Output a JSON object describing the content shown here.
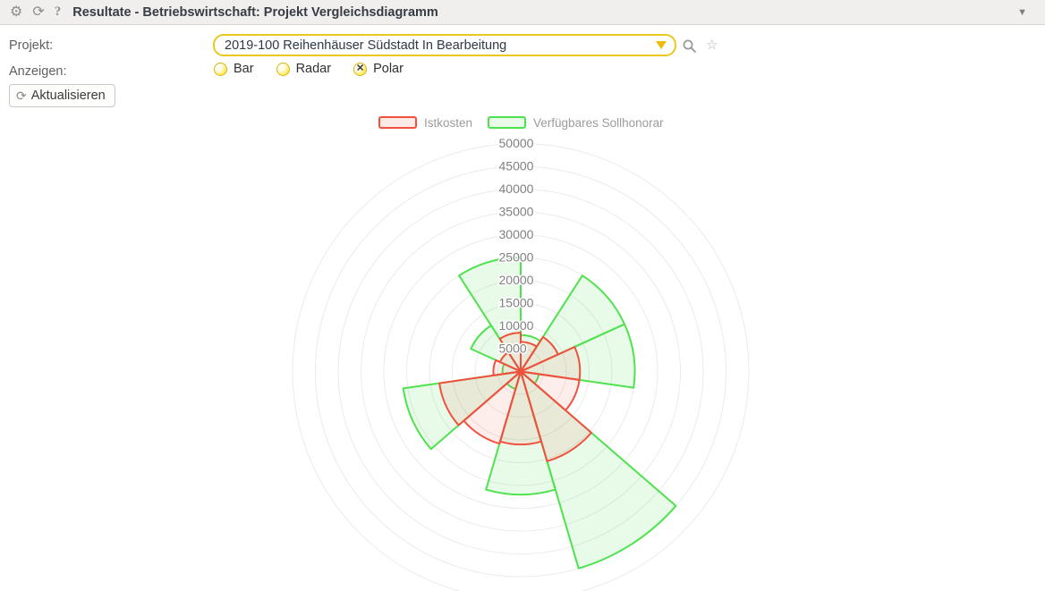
{
  "header": {
    "title": "Resultate - Betriebswirtschaft: Projekt Vergleichsdiagramm"
  },
  "icons": {
    "settings": "⚙",
    "refresh": "⟳",
    "help": "?",
    "collapse_caret": "▼",
    "star": "☆"
  },
  "filters": {
    "projekt_label": "Projekt:",
    "projekt_value": "2019-100 Reihenhäuser Südstadt In Bearbeitung",
    "anzeigen_label": "Anzeigen:",
    "display_options": [
      {
        "label": "Bar",
        "selected": false
      },
      {
        "label": "Radar",
        "selected": false
      },
      {
        "label": "Polar",
        "selected": true
      }
    ],
    "checked_glyph": "✕",
    "refresh_button_label": "Aktualisieren"
  },
  "chart_data": {
    "type": "polar",
    "legend": [
      {
        "name": "Istkosten",
        "color": "#f0503e",
        "fill": "rgba(240,80,62,0.10)",
        "swatch_fill": "#fbeae6"
      },
      {
        "name": "Verfügbares Sollhonorar",
        "color": "#4fe24f",
        "fill": "rgba(79,226,79,0.13)",
        "swatch_fill": "#eafbea"
      }
    ],
    "radial_ticks": [
      5000,
      10000,
      15000,
      20000,
      25000,
      30000,
      35000,
      40000,
      45000,
      50000
    ],
    "rmax": 50000,
    "grid_color": "#ebebeb",
    "tick_color": "#808080",
    "start_angle_deg": 90,
    "segment_sweep_deg": 32.727,
    "direction": "ccw",
    "segments": [
      {
        "sollhonorar": 25000,
        "istkosten": 8500
      },
      {
        "sollhonorar": 12000,
        "istkosten": 5000
      },
      {
        "sollhonorar": 4000,
        "istkosten": 6000
      },
      {
        "sollhonorar": 26000,
        "istkosten": 18000
      },
      {
        "sollhonorar": 4000,
        "istkosten": 16500
      },
      {
        "sollhonorar": 27000,
        "istkosten": 16000
      },
      {
        "sollhonorar": 45000,
        "istkosten": 20500
      },
      {
        "sollhonorar": 4000,
        "istkosten": 13000
      },
      {
        "sollhonorar": 25000,
        "istkosten": 13000
      },
      {
        "sollhonorar": 25000,
        "istkosten": 9000
      },
      {
        "sollhonorar": 8000,
        "istkosten": 6500
      }
    ]
  }
}
